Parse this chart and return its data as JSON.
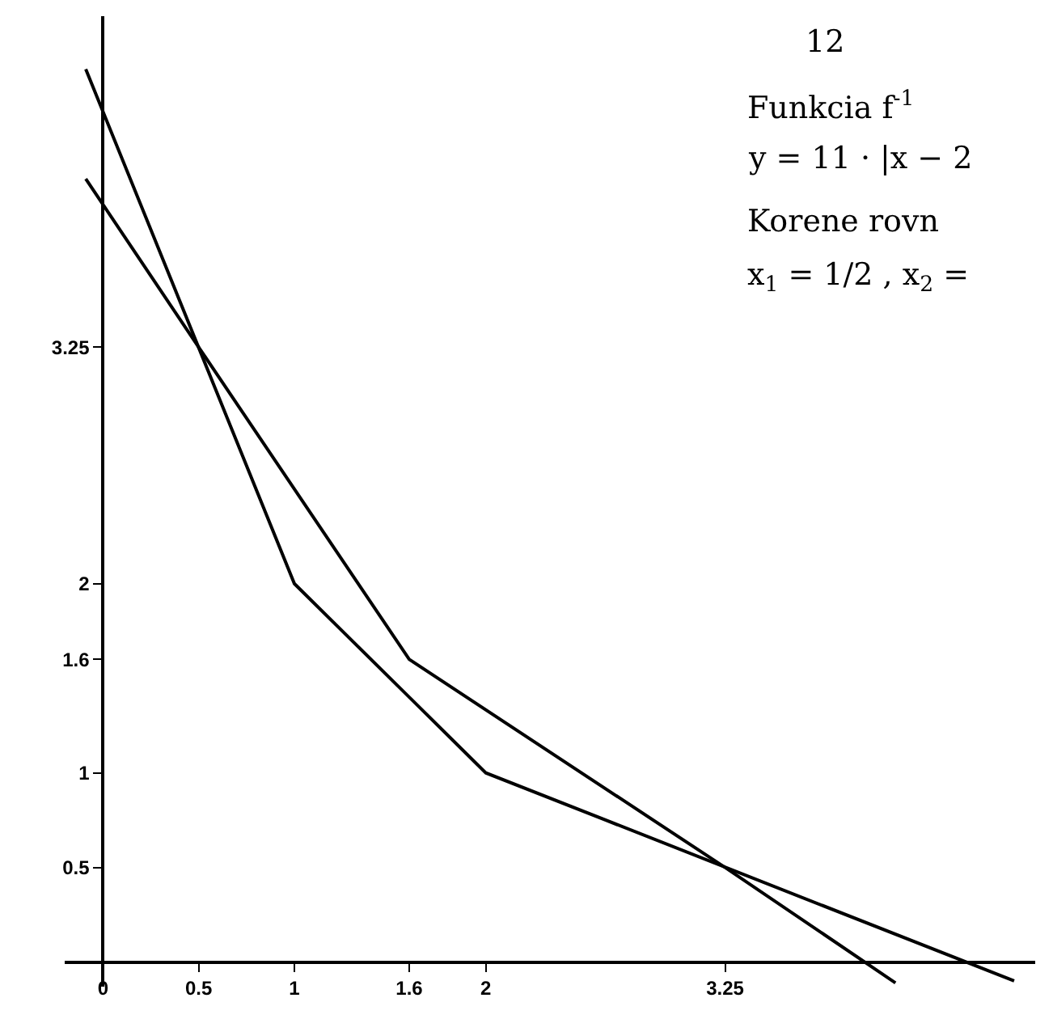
{
  "chart_data": {
    "type": "line",
    "annotations": [
      "12",
      "Funkcia f$^{-1}$",
      "y = 11 · |x − 2",
      "Korene rovn",
      "x$_{1}$ = 1/2 , x$_{2}$ ="
    ],
    "series": [
      {
        "color": "#000000",
        "x": [
          -0.09,
          1,
          2,
          4.76
        ],
        "values": [
          4.72,
          2,
          1,
          -0.1
        ]
      },
      {
        "color": "#000000",
        "x": [
          -0.09,
          0.5,
          1.6,
          3.25,
          4.14
        ],
        "values": [
          4.14,
          3.25,
          1.6,
          0.5,
          -0.11
        ]
      }
    ],
    "xlim": [
      -0.2,
      4.87
    ],
    "ylim": [
      -0.13,
      5.0
    ],
    "xticks": [
      0,
      0.5,
      1,
      1.6,
      2,
      3.25
    ],
    "yticks": [
      0.5,
      1,
      1.6,
      2,
      3.25
    ],
    "legend": false,
    "marker": "none",
    "line_style": "solid"
  }
}
